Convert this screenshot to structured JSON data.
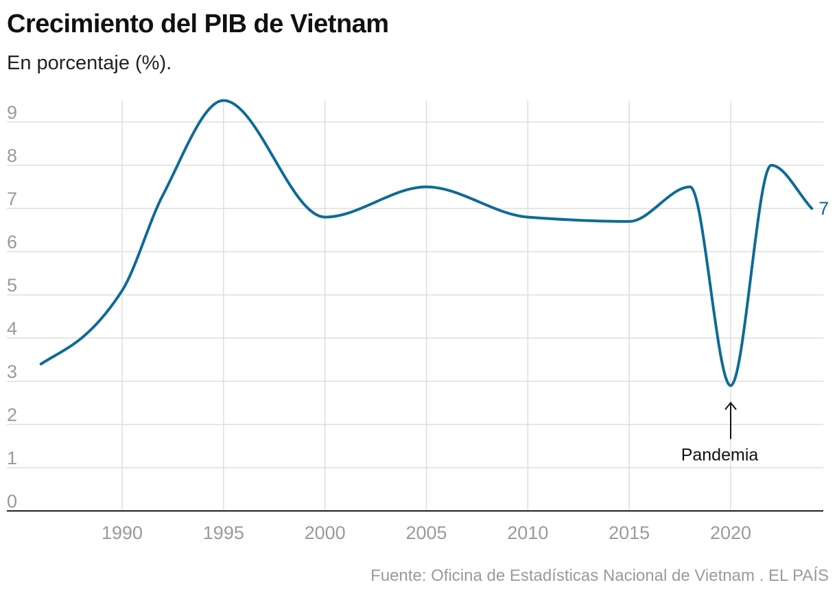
{
  "chart_data": {
    "type": "line",
    "title": "Crecimiento del PIB de Vietnam",
    "subtitle": "En porcentaje (%).",
    "source": "Fuente: Oficina de Estadísticas Nacional de Vietnam . EL PAÍS",
    "xlabel": "",
    "ylabel": "",
    "xlim": [
      1986,
      2024
    ],
    "ylim": [
      0,
      9.5
    ],
    "x_ticks": [
      1990,
      1995,
      2000,
      2005,
      2010,
      2015,
      2020
    ],
    "x_tick_labels": [
      "1990",
      "1995",
      "2000",
      "2005",
      "2010",
      "2015",
      "2020"
    ],
    "y_ticks": [
      0,
      1,
      2,
      3,
      4,
      5,
      6,
      7,
      8,
      9
    ],
    "y_tick_labels": [
      "0",
      "1",
      "2",
      "3",
      "4",
      "5",
      "6",
      "7",
      "8",
      "9"
    ],
    "grid": true,
    "series": [
      {
        "name": "PIB",
        "color": "#0f6a97",
        "x": [
          1986,
          1988,
          1990,
          1992,
          1995,
          2000,
          2005,
          2010,
          2015,
          2018,
          2020,
          2022,
          2024
        ],
        "values": [
          3.4,
          4.0,
          5.1,
          7.3,
          9.5,
          6.8,
          7.5,
          6.8,
          6.7,
          7.5,
          2.9,
          8.0,
          7.0
        ],
        "end_label": "7"
      }
    ],
    "annotations": [
      {
        "text": "Pandemia",
        "x": 2020,
        "y": 2.9
      }
    ]
  },
  "colors": {
    "line": "#0f6a97",
    "grid": "#dddddd",
    "axis": "#222222",
    "tick": "#9a9a9a"
  }
}
